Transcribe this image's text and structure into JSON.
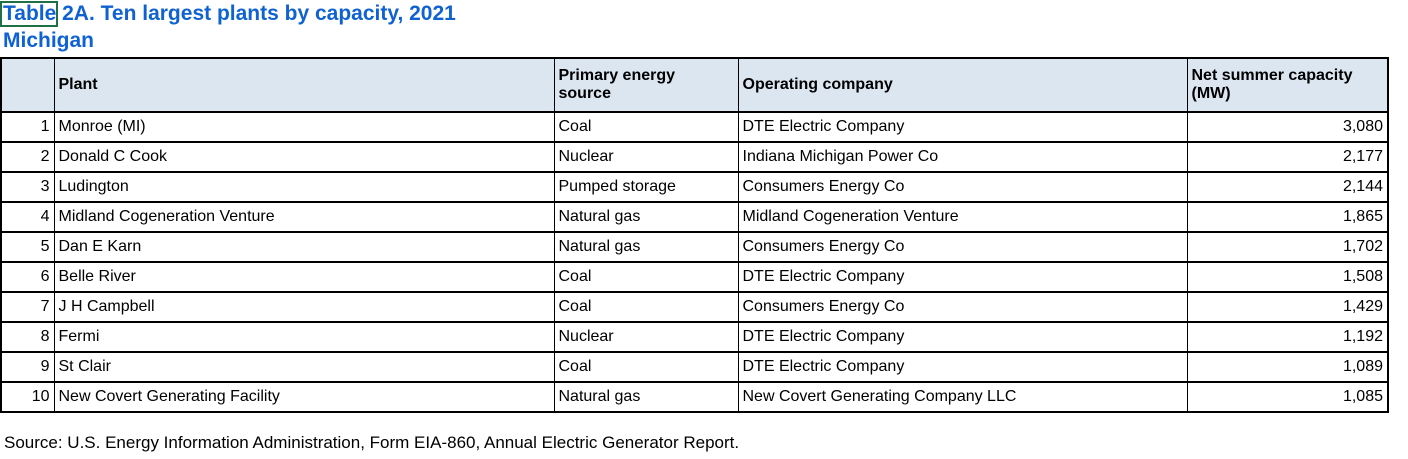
{
  "title": "Table 2A. Ten largest plants by capacity, 2021",
  "subtitle": "Michigan",
  "table": {
    "headers": {
      "rank": "",
      "plant": "Plant",
      "source": "Primary energy source",
      "company": "Operating company",
      "capacity": "Net summer capacity (MW)"
    },
    "rows": [
      {
        "rank": "1",
        "plant": "Monroe (MI)",
        "source": "Coal",
        "company": "DTE Electric Company",
        "capacity": "3,080"
      },
      {
        "rank": "2",
        "plant": "Donald C Cook",
        "source": "Nuclear",
        "company": "Indiana Michigan Power Co",
        "capacity": "2,177"
      },
      {
        "rank": "3",
        "plant": "Ludington",
        "source": "Pumped storage",
        "company": "Consumers Energy Co",
        "capacity": "2,144"
      },
      {
        "rank": "4",
        "plant": "Midland Cogeneration Venture",
        "source": "Natural gas",
        "company": "Midland Cogeneration Venture",
        "capacity": "1,865"
      },
      {
        "rank": "5",
        "plant": "Dan E Karn",
        "source": "Natural gas",
        "company": "Consumers Energy Co",
        "capacity": "1,702"
      },
      {
        "rank": "6",
        "plant": "Belle River",
        "source": "Coal",
        "company": "DTE Electric Company",
        "capacity": "1,508"
      },
      {
        "rank": "7",
        "plant": "J H Campbell",
        "source": "Coal",
        "company": "Consumers Energy Co",
        "capacity": "1,429"
      },
      {
        "rank": "8",
        "plant": "Fermi",
        "source": "Nuclear",
        "company": "DTE Electric Company",
        "capacity": "1,192"
      },
      {
        "rank": "9",
        "plant": "St Clair",
        "source": "Coal",
        "company": "DTE Electric Company",
        "capacity": "1,089"
      },
      {
        "rank": "10",
        "plant": "New Covert Generating Facility",
        "source": "Natural gas",
        "company": "New Covert Generating Company LLC",
        "capacity": "1,085"
      }
    ]
  },
  "source_note": "Source: U.S. Energy Information Administration, Form EIA-860, Annual Electric Generator Report.",
  "colors": {
    "title_blue": "#0f62d2",
    "header_fill": "#dce6f1",
    "border_black": "#000000",
    "selection_green": "#1e7145",
    "background": "#ffffff"
  }
}
